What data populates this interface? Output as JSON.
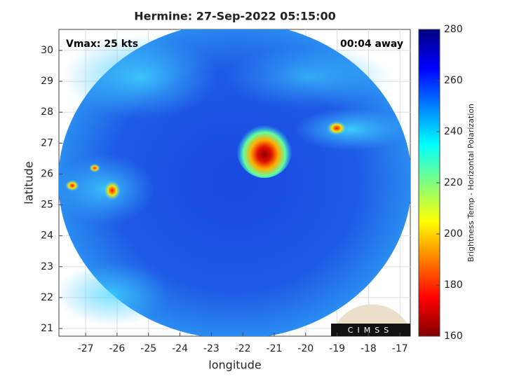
{
  "chart_data": {
    "type": "image",
    "title": "Hermine: 27-Sep-2022 05:15:00",
    "xlabel": "longitude",
    "ylabel": "latitude",
    "annotations": [
      "Vmax: 25 kts",
      "00:04 away"
    ],
    "logo": "CIMSS",
    "xlim": [
      -27.85,
      -16.67
    ],
    "ylim": [
      20.75,
      30.68
    ],
    "xticks": [
      -27,
      -26,
      -25,
      -24,
      -23,
      -22,
      -21,
      -20,
      -19,
      -18,
      -17
    ],
    "yticks": [
      21,
      22,
      23,
      24,
      25,
      26,
      27,
      28,
      29,
      30
    ],
    "grid": true,
    "colorbar": {
      "label": "Brightness Temp - Horizontal Polarization",
      "lim": [
        160,
        280
      ],
      "ticks": [
        160,
        180,
        200,
        220,
        240,
        260,
        280
      ],
      "colormap": "jet-reversed"
    }
  }
}
